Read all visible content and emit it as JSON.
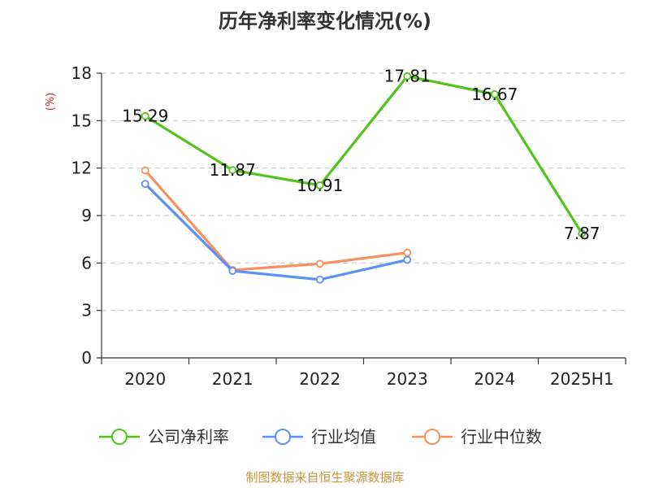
{
  "chart_data": {
    "type": "line",
    "title": "历年净利率变化情况(%)",
    "ylabel": "(%)",
    "xlabel": "",
    "categories": [
      "2020",
      "2021",
      "2022",
      "2023",
      "2024",
      "2025H1"
    ],
    "ylim": [
      0,
      18
    ],
    "yticks": [
      0,
      3,
      6,
      9,
      12,
      15,
      18
    ],
    "grid": true,
    "legend_position": "bottom",
    "series": [
      {
        "name": "公司净利率",
        "color": "#52c41a",
        "values": [
          15.29,
          11.87,
          10.91,
          17.81,
          16.67,
          7.87
        ],
        "labels": [
          "15.29",
          "11.87",
          "10.91",
          "17.81",
          "16.67",
          "7.87"
        ]
      },
      {
        "name": "行业均值",
        "color": "#5b8ff9",
        "values": [
          11.0,
          5.5,
          4.95,
          6.2,
          null,
          null
        ]
      },
      {
        "name": "行业中位数",
        "color": "#f6905f",
        "values": [
          11.85,
          5.55,
          5.95,
          6.65,
          null,
          null
        ]
      }
    ]
  },
  "footer": {
    "source": "制图数据来自恒生聚源数据库"
  }
}
